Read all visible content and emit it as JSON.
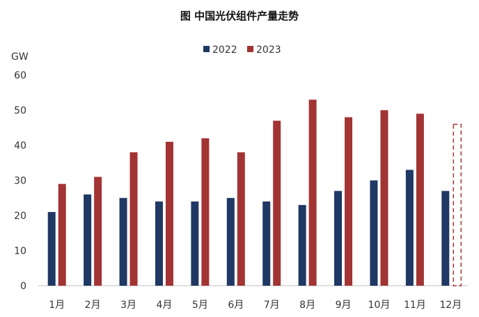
{
  "chart_data": {
    "type": "bar",
    "title": "图  中国光伏组件产量走势",
    "ylabel": "GW",
    "xlabel": "",
    "categories": [
      "1月",
      "2月",
      "3月",
      "4月",
      "5月",
      "6月",
      "7月",
      "8月",
      "9月",
      "10月",
      "11月",
      "12月"
    ],
    "series": [
      {
        "name": "2022",
        "color": "#1f3864",
        "values": [
          21,
          26,
          25,
          24,
          24,
          25,
          24,
          23,
          27,
          30,
          33,
          27
        ]
      },
      {
        "name": "2023",
        "color": "#a23434",
        "values": [
          29,
          31,
          38,
          41,
          42,
          38,
          47,
          53,
          48,
          50,
          49,
          null
        ]
      }
    ],
    "forecast_placeholder": {
      "category": "12月",
      "series": "2023",
      "style": "dashed-outline",
      "value": 46
    },
    "ylim": [
      0,
      60
    ],
    "yticks": [
      0,
      10,
      20,
      30,
      40,
      50,
      60
    ],
    "grid": false,
    "legend": "top-center"
  }
}
